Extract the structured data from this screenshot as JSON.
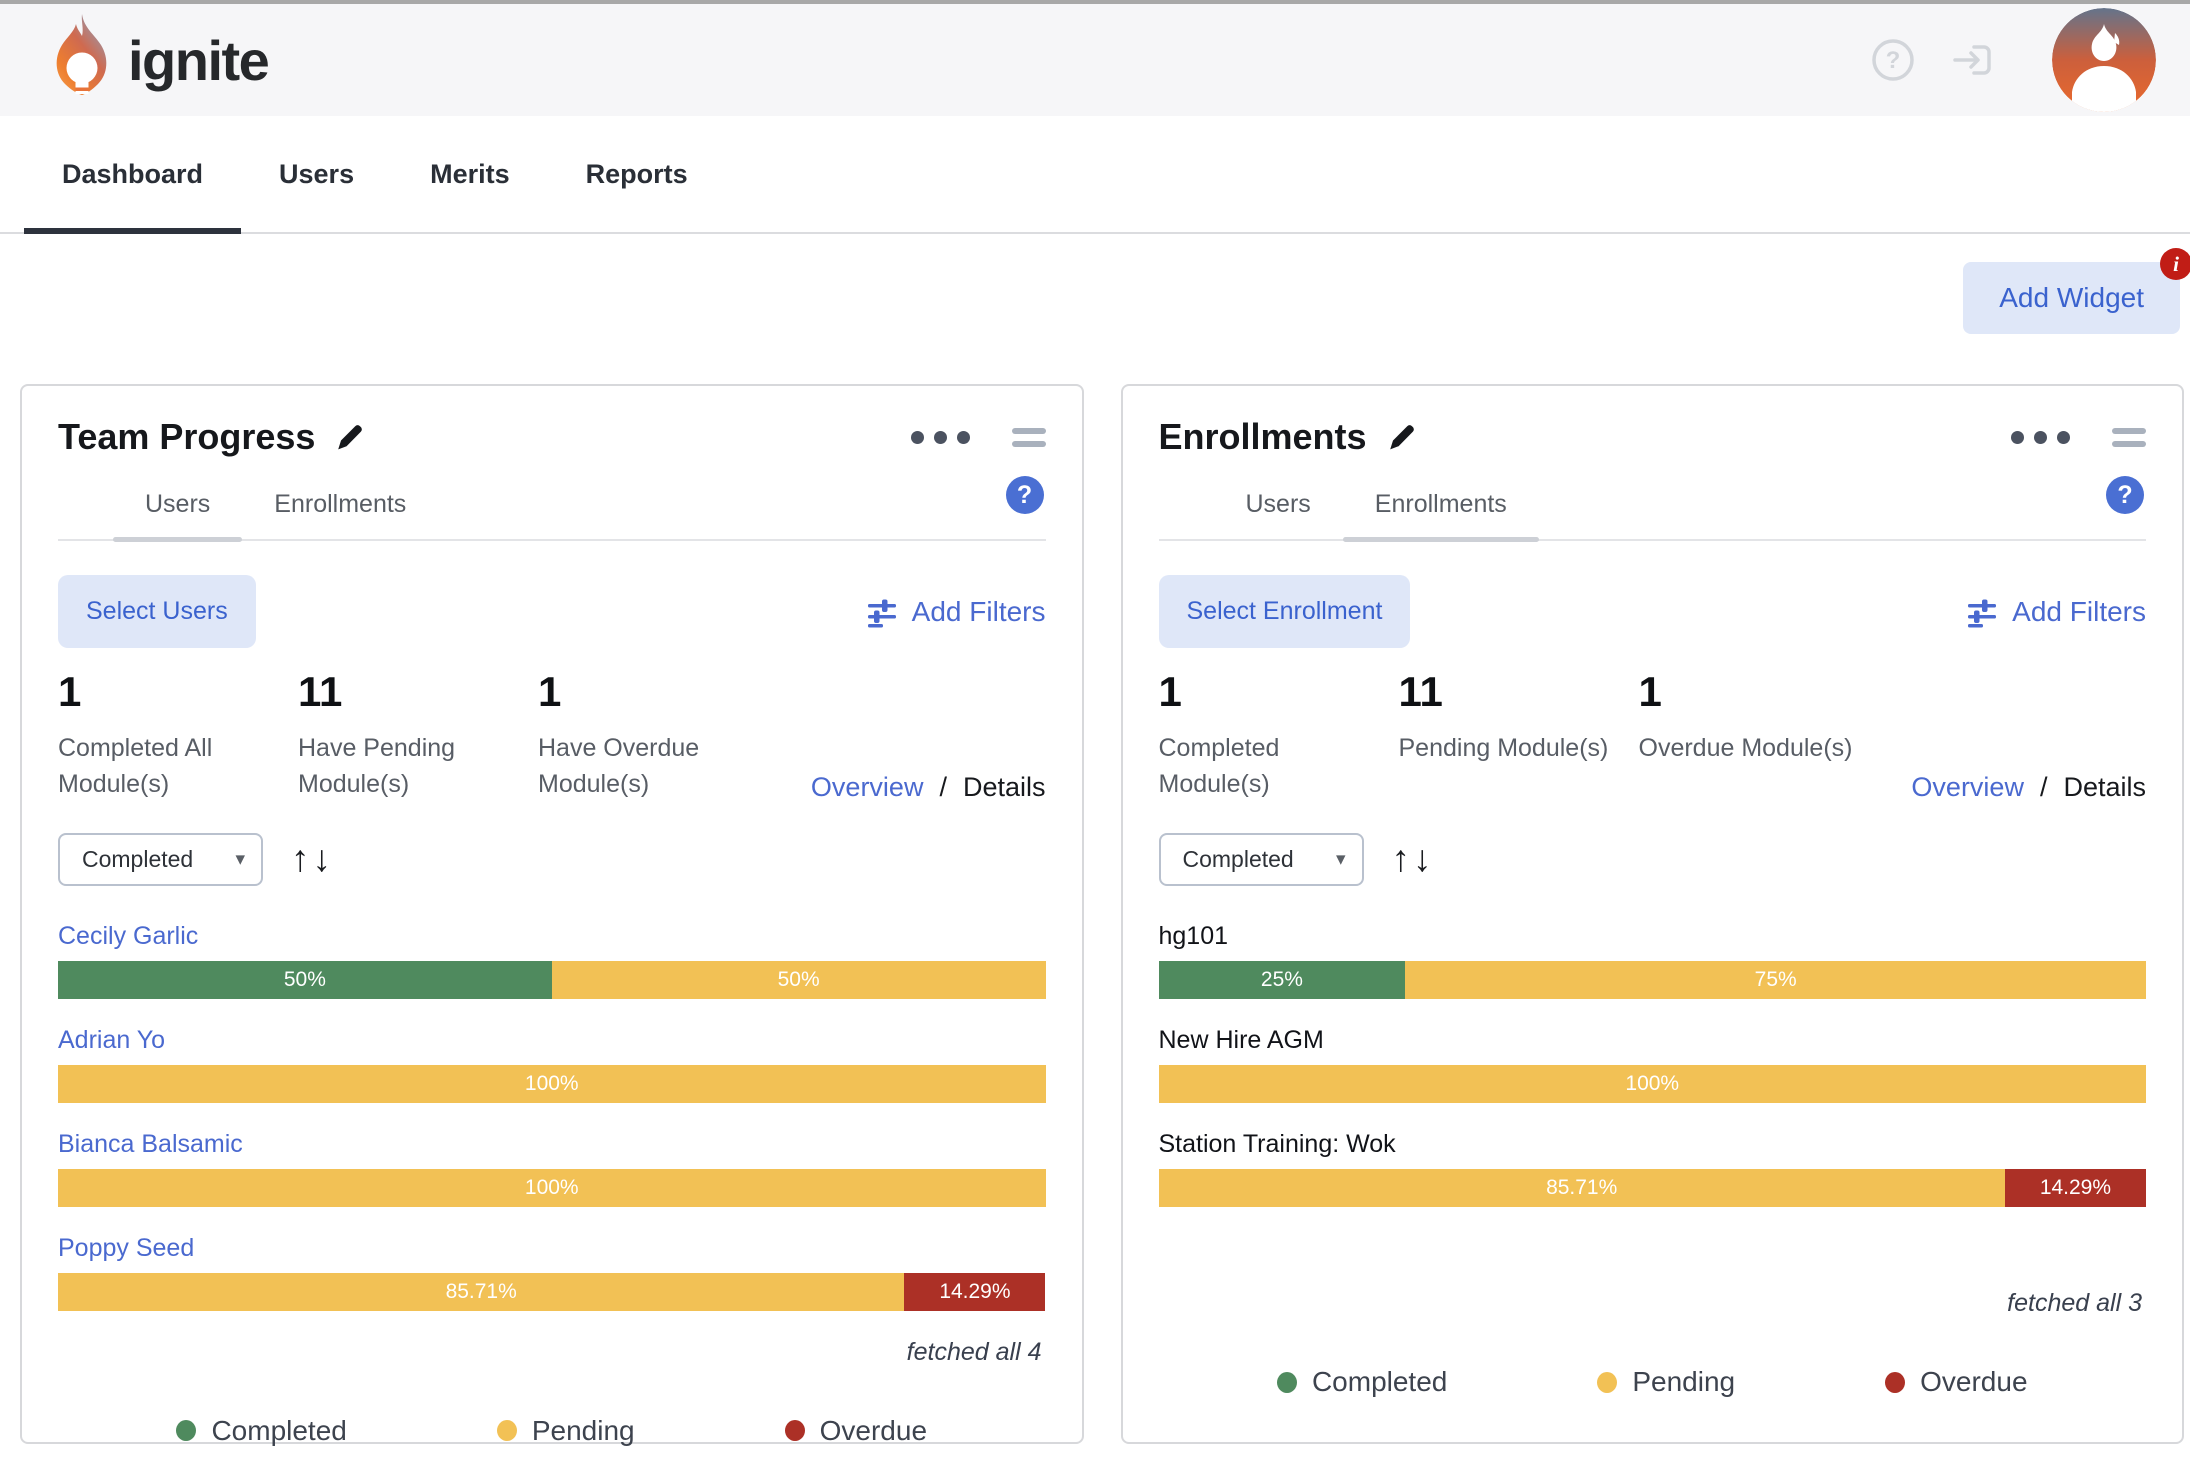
{
  "header": {
    "brand": "ignite"
  },
  "nav": {
    "tabs": [
      {
        "label": "Dashboard"
      },
      {
        "label": "Users"
      },
      {
        "label": "Merits"
      },
      {
        "label": "Reports"
      }
    ]
  },
  "toolbar": {
    "add_widget_label": "Add Widget",
    "info_badge": "i"
  },
  "icons": {
    "help_glyph": "?",
    "caret_glyph": "▾",
    "sort_up_glyph": "↑",
    "sort_down_glyph": "↓"
  },
  "colors": {
    "completed": "#4f8a5e",
    "pending": "#f2c155",
    "overdue": "#ac3026"
  },
  "widgets": [
    {
      "title": "Team Progress",
      "tabs": {
        "users": "Users",
        "enrollments": "Enrollments"
      },
      "active_tab": "users",
      "select_label": "Select Users",
      "add_filters_label": "Add Filters",
      "stats": [
        {
          "value": "1",
          "label": "Completed All Module(s)"
        },
        {
          "value": "11",
          "label": "Have Pending Module(s)"
        },
        {
          "value": "1",
          "label": "Have Overdue Module(s)"
        }
      ],
      "view_links": {
        "overview": "Overview",
        "separator": "/",
        "details": "Details"
      },
      "sort": {
        "selected": "Completed"
      },
      "rows": [
        {
          "name": "Cecily Garlic",
          "link": true,
          "segments": [
            {
              "status": "completed",
              "pct": 50,
              "label": "50%"
            },
            {
              "status": "pending",
              "pct": 50,
              "label": "50%"
            }
          ]
        },
        {
          "name": "Adrian Yo",
          "link": true,
          "segments": [
            {
              "status": "pending",
              "pct": 100,
              "label": "100%"
            }
          ]
        },
        {
          "name": "Bianca Balsamic",
          "link": true,
          "segments": [
            {
              "status": "pending",
              "pct": 100,
              "label": "100%"
            }
          ]
        },
        {
          "name": "Poppy Seed",
          "link": true,
          "segments": [
            {
              "status": "pending",
              "pct": 85.71,
              "label": "85.71%"
            },
            {
              "status": "overdue",
              "pct": 14.29,
              "label": "14.29%"
            }
          ]
        }
      ],
      "fetched_note": "fetched all 4",
      "legend": [
        {
          "status": "completed",
          "label": "Completed"
        },
        {
          "status": "pending",
          "label": "Pending"
        },
        {
          "status": "overdue",
          "label": "Overdue"
        }
      ]
    },
    {
      "title": "Enrollments",
      "tabs": {
        "users": "Users",
        "enrollments": "Enrollments"
      },
      "active_tab": "enrollments",
      "select_label": "Select Enrollment",
      "add_filters_label": "Add Filters",
      "stats": [
        {
          "value": "1",
          "label": "Completed Module(s)"
        },
        {
          "value": "11",
          "label": "Pending Module(s)"
        },
        {
          "value": "1",
          "label": "Overdue Module(s)"
        }
      ],
      "view_links": {
        "overview": "Overview",
        "separator": "/",
        "details": "Details"
      },
      "sort": {
        "selected": "Completed"
      },
      "rows": [
        {
          "name": "hg101",
          "link": false,
          "segments": [
            {
              "status": "completed",
              "pct": 25,
              "label": "25%"
            },
            {
              "status": "pending",
              "pct": 75,
              "label": "75%"
            }
          ]
        },
        {
          "name": "New Hire AGM",
          "link": false,
          "segments": [
            {
              "status": "pending",
              "pct": 100,
              "label": "100%"
            }
          ]
        },
        {
          "name": "Station Training: Wok",
          "link": false,
          "segments": [
            {
              "status": "pending",
              "pct": 85.71,
              "label": "85.71%"
            },
            {
              "status": "overdue",
              "pct": 14.29,
              "label": "14.29%"
            }
          ]
        }
      ],
      "fetched_note": "fetched all 3",
      "legend": [
        {
          "status": "completed",
          "label": "Completed"
        },
        {
          "status": "pending",
          "label": "Pending"
        },
        {
          "status": "overdue",
          "label": "Overdue"
        }
      ]
    }
  ]
}
